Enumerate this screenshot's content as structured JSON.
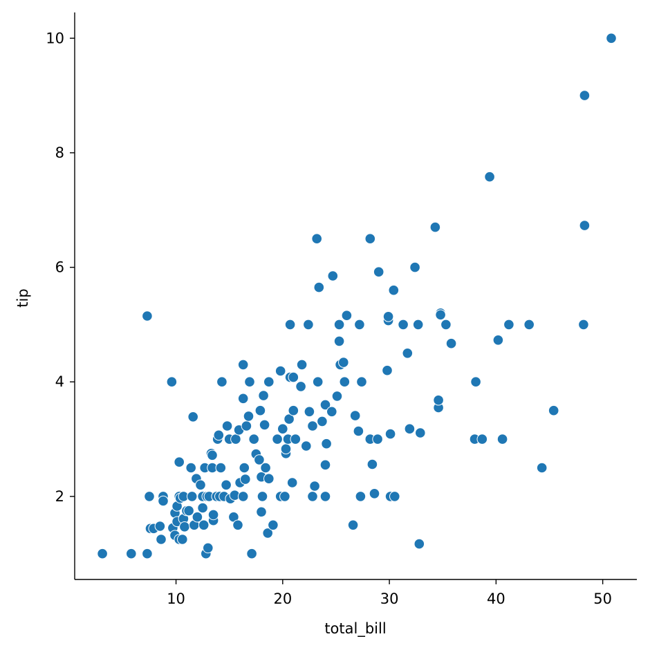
{
  "chart_data": {
    "type": "scatter",
    "title": "",
    "xlabel": "total_bill",
    "ylabel": "tip",
    "xlim": [
      0.5,
      53.2
    ],
    "ylim": [
      0.55,
      10.45
    ],
    "xticks": [
      10,
      20,
      30,
      40,
      50
    ],
    "yticks": [
      2,
      4,
      6,
      8,
      10
    ],
    "grid": false,
    "legend": "none",
    "color": "#1f77b4",
    "points": [
      [
        3.1,
        1.0
      ],
      [
        5.8,
        1.0
      ],
      [
        7.3,
        1.0
      ],
      [
        7.3,
        5.15
      ],
      [
        7.5,
        2.0
      ],
      [
        7.6,
        1.44
      ],
      [
        7.9,
        1.44
      ],
      [
        8.5,
        1.48
      ],
      [
        8.6,
        1.25
      ],
      [
        8.8,
        2.0
      ],
      [
        8.8,
        1.92
      ],
      [
        9.6,
        4.0
      ],
      [
        9.7,
        1.45
      ],
      [
        9.9,
        1.32
      ],
      [
        9.9,
        1.71
      ],
      [
        10.1,
        1.56
      ],
      [
        10.1,
        1.83
      ],
      [
        10.3,
        2.0
      ],
      [
        10.3,
        1.25
      ],
      [
        10.3,
        2.6
      ],
      [
        10.4,
        1.97
      ],
      [
        10.6,
        1.25
      ],
      [
        10.7,
        1.61
      ],
      [
        10.7,
        2.0
      ],
      [
        10.8,
        1.47
      ],
      [
        11.0,
        1.75
      ],
      [
        11.2,
        1.75
      ],
      [
        11.4,
        2.5
      ],
      [
        11.5,
        2.0
      ],
      [
        11.6,
        3.39
      ],
      [
        11.7,
        1.5
      ],
      [
        11.9,
        2.31
      ],
      [
        12.0,
        1.64
      ],
      [
        12.3,
        2.2
      ],
      [
        12.5,
        2.0
      ],
      [
        12.5,
        1.8
      ],
      [
        12.6,
        1.5
      ],
      [
        12.7,
        2.5
      ],
      [
        12.8,
        1.0
      ],
      [
        12.9,
        2.0
      ],
      [
        13.0,
        1.1
      ],
      [
        13.1,
        2.0
      ],
      [
        13.3,
        2.75
      ],
      [
        13.4,
        2.72
      ],
      [
        13.4,
        2.5
      ],
      [
        13.5,
        1.58
      ],
      [
        13.5,
        1.68
      ],
      [
        13.8,
        2.0
      ],
      [
        13.9,
        3.0
      ],
      [
        14.0,
        3.07
      ],
      [
        14.1,
        2.0
      ],
      [
        14.2,
        2.5
      ],
      [
        14.3,
        4.0
      ],
      [
        14.5,
        2.0
      ],
      [
        14.7,
        2.2
      ],
      [
        14.8,
        3.23
      ],
      [
        15.0,
        3.0
      ],
      [
        15.1,
        1.96
      ],
      [
        15.4,
        1.64
      ],
      [
        15.5,
        2.02
      ],
      [
        15.6,
        3.0
      ],
      [
        15.8,
        1.5
      ],
      [
        15.9,
        3.16
      ],
      [
        16.0,
        2.24
      ],
      [
        16.3,
        3.71
      ],
      [
        16.3,
        4.3
      ],
      [
        16.3,
        2.0
      ],
      [
        16.4,
        2.5
      ],
      [
        16.5,
        2.3
      ],
      [
        16.6,
        3.23
      ],
      [
        16.8,
        3.4
      ],
      [
        16.9,
        4.0
      ],
      [
        17.1,
        1.0
      ],
      [
        17.3,
        3.0
      ],
      [
        17.5,
        2.74
      ],
      [
        17.8,
        2.64
      ],
      [
        17.9,
        3.5
      ],
      [
        18.0,
        2.34
      ],
      [
        18.0,
        1.73
      ],
      [
        18.1,
        2.0
      ],
      [
        18.2,
        3.76
      ],
      [
        18.3,
        3.25
      ],
      [
        18.4,
        2.5
      ],
      [
        18.6,
        1.36
      ],
      [
        18.7,
        2.31
      ],
      [
        18.7,
        4.0
      ],
      [
        19.1,
        1.5
      ],
      [
        19.5,
        3.0
      ],
      [
        19.8,
        4.19
      ],
      [
        19.8,
        2.0
      ],
      [
        20.0,
        3.18
      ],
      [
        20.2,
        2.0
      ],
      [
        20.3,
        2.75
      ],
      [
        20.3,
        2.83
      ],
      [
        20.5,
        3.0
      ],
      [
        20.6,
        3.35
      ],
      [
        20.7,
        4.08
      ],
      [
        20.7,
        5.0
      ],
      [
        20.9,
        2.24
      ],
      [
        21.0,
        4.08
      ],
      [
        21.0,
        3.5
      ],
      [
        21.2,
        3.0
      ],
      [
        21.7,
        3.92
      ],
      [
        21.8,
        4.3
      ],
      [
        22.2,
        2.88
      ],
      [
        22.4,
        5.0
      ],
      [
        22.5,
        3.48
      ],
      [
        22.8,
        3.23
      ],
      [
        22.8,
        2.0
      ],
      [
        23.0,
        2.18
      ],
      [
        23.2,
        6.5
      ],
      [
        23.3,
        4.0
      ],
      [
        23.4,
        5.65
      ],
      [
        23.7,
        3.31
      ],
      [
        24.0,
        3.6
      ],
      [
        24.0,
        2.55
      ],
      [
        24.0,
        2.0
      ],
      [
        24.1,
        2.92
      ],
      [
        24.6,
        3.48
      ],
      [
        24.7,
        5.85
      ],
      [
        25.1,
        3.75
      ],
      [
        25.3,
        4.71
      ],
      [
        25.3,
        5.0
      ],
      [
        25.4,
        4.3
      ],
      [
        25.7,
        4.34
      ],
      [
        25.8,
        4.0
      ],
      [
        26.0,
        5.16
      ],
      [
        26.6,
        1.5
      ],
      [
        26.8,
        3.41
      ],
      [
        27.1,
        3.14
      ],
      [
        27.2,
        5.0
      ],
      [
        27.3,
        2.0
      ],
      [
        27.4,
        4.0
      ],
      [
        28.2,
        6.5
      ],
      [
        28.2,
        3.0
      ],
      [
        28.4,
        2.56
      ],
      [
        28.6,
        2.05
      ],
      [
        28.9,
        3.0
      ],
      [
        29.0,
        5.92
      ],
      [
        29.8,
        4.2
      ],
      [
        29.9,
        5.07
      ],
      [
        29.9,
        5.14
      ],
      [
        30.1,
        3.09
      ],
      [
        30.1,
        2.0
      ],
      [
        30.4,
        5.6
      ],
      [
        30.5,
        2.0
      ],
      [
        31.3,
        5.0
      ],
      [
        31.7,
        4.5
      ],
      [
        31.9,
        3.18
      ],
      [
        32.4,
        6.0
      ],
      [
        32.7,
        5.0
      ],
      [
        32.8,
        1.17
      ],
      [
        32.9,
        3.11
      ],
      [
        34.3,
        6.7
      ],
      [
        34.6,
        3.55
      ],
      [
        34.6,
        3.68
      ],
      [
        34.8,
        5.2
      ],
      [
        34.8,
        5.17
      ],
      [
        35.3,
        5.0
      ],
      [
        35.8,
        4.67
      ],
      [
        38.0,
        3.0
      ],
      [
        38.1,
        4.0
      ],
      [
        38.7,
        3.0
      ],
      [
        39.4,
        7.58
      ],
      [
        40.2,
        4.73
      ],
      [
        40.6,
        3.0
      ],
      [
        41.2,
        5.0
      ],
      [
        43.1,
        5.0
      ],
      [
        44.3,
        2.5
      ],
      [
        45.4,
        3.5
      ],
      [
        48.2,
        5.0
      ],
      [
        48.3,
        6.73
      ],
      [
        48.3,
        9.0
      ],
      [
        50.8,
        10.0
      ]
    ]
  }
}
